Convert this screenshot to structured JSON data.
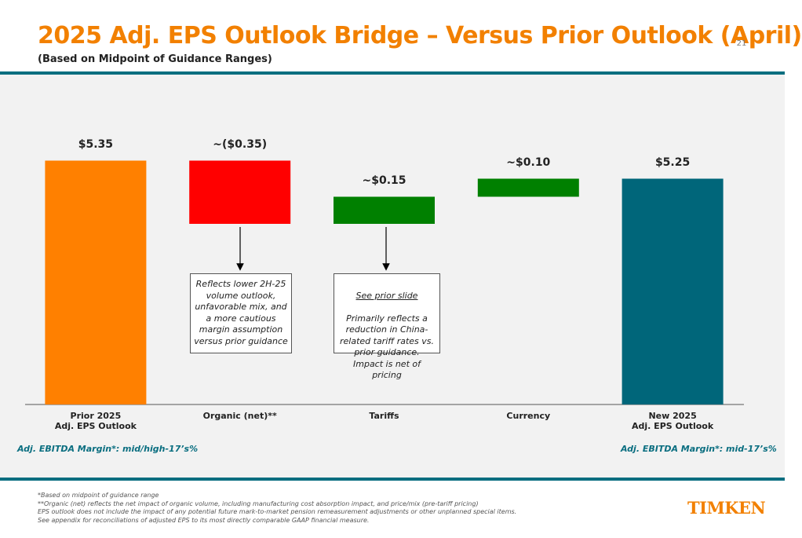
{
  "page_number": "21",
  "chart_data": {
    "type": "waterfall",
    "title": "2025 Adj. EPS Outlook Bridge – Versus Prior Outlook (April)",
    "subtitle": "(Based on Midpoint of Guidance Ranges)",
    "categories": [
      "Prior 2025\nAdj. EPS Outlook",
      "Organic (net)**",
      "Tariffs",
      "Currency",
      "New 2025\nAdj. EPS Outlook"
    ],
    "values": [
      5.35,
      -0.35,
      0.15,
      0.1,
      5.25
    ],
    "value_labels": [
      "$5.35",
      "~($0.35)",
      "~$0.15",
      "~$0.10",
      "$5.25"
    ],
    "measure": [
      "absolute",
      "relative",
      "relative",
      "relative",
      "total"
    ],
    "colors": [
      "#ff8000",
      "#ff0000",
      "#008000",
      "#008000",
      "#00667a"
    ],
    "ylim": [
      4.0,
      5.6
    ],
    "annotations": [
      {
        "text": "Reflects lower 2H-25\nvolume outlook,\nunfavorable mix, and\na more cautious\nmargin assumption\nversus prior guidance"
      },
      {
        "link": "See prior slide",
        "text": "Primarily reflects a\nreduction in China-\nrelated tariff rates vs.\nprior guidance.\nImpact is net of pricing"
      }
    ],
    "left_note": "Adj. EBITDA Margin*: mid/high-17’s%",
    "right_note": "Adj. EBITDA Margin*: mid-17’s%"
  },
  "footnotes": "*Based on midpoint of guidance range\n**Organic (net) reflects the net impact of organic volume, including manufacturing cost absorption impact, and price/mix (pre-tariff pricing)\nEPS outlook does not include the impact of any potential future mark-to-market pension remeasurement adjustments or other unplanned special items.\nSee appendix for reconciliations of adjusted EPS to its most directly comparable GAAP financial measure.",
  "logo": "TIMKEN"
}
